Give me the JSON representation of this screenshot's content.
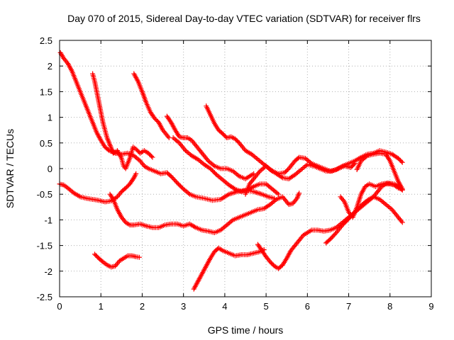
{
  "chart_data": {
    "type": "scatter",
    "title": "Day 070 of 2015, Sidereal Day-to-day VTEC variation (SDTVAR) for receiver flrs",
    "xlabel": "GPS time / hours",
    "ylabel": "SDTVAR / TECUs",
    "xlim": [
      0,
      9
    ],
    "ylim": [
      -2.5,
      2.5
    ],
    "xticks": [
      "0",
      "1",
      "2",
      "3",
      "4",
      "5",
      "6",
      "7",
      "8",
      "9"
    ],
    "yticks": [
      "2.5",
      "2",
      "1.5",
      "1",
      "0.5",
      "0",
      "-0.5",
      "-1",
      "-1.5",
      "-2",
      "-2.5"
    ],
    "grid": true,
    "marker": "+",
    "color": "#ff0000",
    "series": [
      {
        "points": [
          [
            0.02,
            2.26
          ],
          [
            0.1,
            2.15
          ],
          [
            0.2,
            2.05
          ],
          [
            0.3,
            1.9
          ],
          [
            0.4,
            1.7
          ],
          [
            0.5,
            1.5
          ],
          [
            0.6,
            1.3
          ],
          [
            0.7,
            1.1
          ],
          [
            0.8,
            0.9
          ],
          [
            0.9,
            0.7
          ],
          [
            1.0,
            0.55
          ],
          [
            1.1,
            0.42
          ],
          [
            1.2,
            0.35
          ],
          [
            1.35,
            0.3
          ],
          [
            1.5,
            0.28
          ],
          [
            1.65,
            0.3
          ],
          [
            1.8,
            0.25
          ],
          [
            1.95,
            0.15
          ],
          [
            2.05,
            0.05
          ],
          [
            2.15,
            0.0
          ],
          [
            2.3,
            -0.05
          ],
          [
            2.45,
            -0.1
          ],
          [
            2.6,
            -0.08
          ],
          [
            2.7,
            -0.15
          ],
          [
            2.85,
            -0.28
          ],
          [
            3.0,
            -0.4
          ],
          [
            3.15,
            -0.5
          ],
          [
            3.3,
            -0.55
          ],
          [
            3.5,
            -0.58
          ],
          [
            3.7,
            -0.62
          ],
          [
            3.9,
            -0.6
          ],
          [
            4.1,
            -0.5
          ],
          [
            4.3,
            -0.45
          ],
          [
            4.5,
            -0.42
          ],
          [
            4.7,
            -0.45
          ],
          [
            4.9,
            -0.5
          ],
          [
            5.05,
            -0.55
          ],
          [
            5.2,
            -0.58
          ]
        ]
      },
      {
        "points": [
          [
            0.0,
            -0.3
          ],
          [
            0.1,
            -0.32
          ],
          [
            0.2,
            -0.38
          ],
          [
            0.35,
            -0.48
          ],
          [
            0.5,
            -0.55
          ],
          [
            0.65,
            -0.58
          ],
          [
            0.8,
            -0.6
          ],
          [
            0.95,
            -0.62
          ],
          [
            1.1,
            -0.65
          ],
          [
            1.25,
            -0.63
          ],
          [
            1.4,
            -0.55
          ],
          [
            1.5,
            -0.45
          ],
          [
            1.6,
            -0.38
          ],
          [
            1.7,
            -0.3
          ],
          [
            1.8,
            -0.18
          ],
          [
            1.85,
            -0.1
          ]
        ]
      },
      {
        "points": [
          [
            0.8,
            1.85
          ],
          [
            0.85,
            1.7
          ],
          [
            0.9,
            1.5
          ],
          [
            0.95,
            1.3
          ],
          [
            1.0,
            1.1
          ],
          [
            1.05,
            0.9
          ],
          [
            1.1,
            0.75
          ],
          [
            1.15,
            0.6
          ],
          [
            1.2,
            0.5
          ],
          [
            1.25,
            0.4
          ],
          [
            1.3,
            0.32
          ],
          [
            1.35,
            0.3
          ]
        ]
      },
      {
        "points": [
          [
            1.3,
            0.3
          ],
          [
            1.4,
            0.35
          ],
          [
            1.5,
            0.2
          ],
          [
            1.55,
            0.05
          ],
          [
            1.6,
            0.0
          ],
          [
            1.7,
            0.2
          ],
          [
            1.78,
            0.42
          ],
          [
            1.85,
            0.38
          ],
          [
            1.95,
            0.3
          ],
          [
            2.05,
            0.35
          ],
          [
            2.15,
            0.3
          ],
          [
            2.25,
            0.22
          ]
        ]
      },
      {
        "points": [
          [
            1.22,
            -0.5
          ],
          [
            1.3,
            -0.6
          ],
          [
            1.4,
            -0.8
          ],
          [
            1.5,
            -0.95
          ],
          [
            1.6,
            -1.05
          ],
          [
            1.7,
            -1.1
          ],
          [
            1.8,
            -1.1
          ],
          [
            1.95,
            -1.08
          ],
          [
            2.1,
            -1.12
          ],
          [
            2.25,
            -1.15
          ],
          [
            2.4,
            -1.15
          ],
          [
            2.55,
            -1.1
          ],
          [
            2.7,
            -1.08
          ],
          [
            2.85,
            -1.08
          ],
          [
            3.0,
            -1.12
          ],
          [
            3.15,
            -1.08
          ],
          [
            3.3,
            -1.15
          ],
          [
            3.45,
            -1.2
          ],
          [
            3.6,
            -1.22
          ],
          [
            3.75,
            -1.25
          ],
          [
            3.9,
            -1.2
          ],
          [
            4.05,
            -1.1
          ],
          [
            4.2,
            -1.0
          ],
          [
            4.35,
            -0.95
          ],
          [
            4.5,
            -0.9
          ],
          [
            4.65,
            -0.85
          ],
          [
            4.8,
            -0.8
          ],
          [
            4.95,
            -0.78
          ],
          [
            5.1,
            -0.7
          ],
          [
            5.25,
            -0.6
          ],
          [
            5.4,
            -0.55
          ],
          [
            5.55,
            -0.7
          ],
          [
            5.65,
            -0.68
          ],
          [
            5.75,
            -0.58
          ],
          [
            5.8,
            -0.48
          ]
        ]
      },
      {
        "points": [
          [
            0.85,
            -1.67
          ],
          [
            0.95,
            -1.75
          ],
          [
            1.05,
            -1.82
          ],
          [
            1.15,
            -1.88
          ],
          [
            1.25,
            -1.92
          ],
          [
            1.35,
            -1.9
          ],
          [
            1.45,
            -1.8
          ],
          [
            1.55,
            -1.75
          ],
          [
            1.65,
            -1.7
          ],
          [
            1.75,
            -1.7
          ],
          [
            1.85,
            -1.72
          ],
          [
            1.93,
            -1.73
          ]
        ]
      },
      {
        "points": [
          [
            1.8,
            1.85
          ],
          [
            1.9,
            1.7
          ],
          [
            2.0,
            1.5
          ],
          [
            2.1,
            1.28
          ],
          [
            2.2,
            1.1
          ],
          [
            2.3,
            0.98
          ],
          [
            2.4,
            0.9
          ],
          [
            2.5,
            0.75
          ],
          [
            2.6,
            0.65
          ],
          [
            2.65,
            0.6
          ]
        ]
      },
      {
        "points": [
          [
            2.6,
            1.02
          ],
          [
            2.7,
            0.9
          ],
          [
            2.8,
            0.75
          ],
          [
            2.9,
            0.62
          ],
          [
            3.0,
            0.6
          ],
          [
            3.1,
            0.6
          ],
          [
            3.2,
            0.55
          ],
          [
            3.3,
            0.45
          ],
          [
            3.45,
            0.3
          ],
          [
            3.6,
            0.15
          ],
          [
            3.75,
            0.05
          ],
          [
            3.9,
            0.0
          ],
          [
            4.05,
            0.0
          ],
          [
            4.2,
            -0.05
          ],
          [
            4.35,
            -0.15
          ],
          [
            4.5,
            -0.2
          ],
          [
            4.6,
            -0.15
          ],
          [
            4.7,
            -0.1
          ]
        ]
      },
      {
        "points": [
          [
            2.75,
            0.6
          ],
          [
            2.9,
            0.5
          ],
          [
            3.05,
            0.35
          ],
          [
            3.2,
            0.25
          ],
          [
            3.35,
            0.18
          ],
          [
            3.5,
            0.08
          ],
          [
            3.65,
            0.0
          ],
          [
            3.8,
            -0.12
          ],
          [
            3.95,
            -0.22
          ],
          [
            4.1,
            -0.32
          ],
          [
            4.25,
            -0.4
          ],
          [
            4.4,
            -0.45
          ],
          [
            4.55,
            -0.42
          ],
          [
            4.7,
            -0.35
          ],
          [
            4.85,
            -0.3
          ],
          [
            5.0,
            -0.3
          ],
          [
            5.15,
            -0.4
          ],
          [
            5.3,
            -0.5
          ]
        ]
      },
      {
        "points": [
          [
            3.55,
            1.22
          ],
          [
            3.65,
            1.05
          ],
          [
            3.75,
            0.88
          ],
          [
            3.85,
            0.75
          ],
          [
            3.95,
            0.68
          ],
          [
            4.05,
            0.6
          ],
          [
            4.15,
            0.62
          ],
          [
            4.25,
            0.58
          ],
          [
            4.35,
            0.5
          ],
          [
            4.5,
            0.35
          ],
          [
            4.65,
            0.28
          ],
          [
            4.8,
            0.18
          ],
          [
            4.95,
            0.08
          ],
          [
            5.1,
            -0.02
          ],
          [
            5.25,
            -0.1
          ],
          [
            5.4,
            -0.18
          ],
          [
            5.55,
            -0.2
          ],
          [
            5.7,
            -0.12
          ],
          [
            5.85,
            -0.02
          ],
          [
            6.0,
            0.08
          ],
          [
            6.15,
            0.05
          ],
          [
            6.3,
            0.0
          ],
          [
            6.45,
            -0.05
          ],
          [
            6.6,
            -0.05
          ],
          [
            6.75,
            0.0
          ],
          [
            6.9,
            0.05
          ],
          [
            7.05,
            0.02
          ],
          [
            7.15,
            0.1
          ]
        ]
      },
      {
        "points": [
          [
            4.5,
            -0.5
          ],
          [
            4.6,
            -0.3
          ],
          [
            4.7,
            -0.2
          ],
          [
            4.85,
            -0.05
          ],
          [
            5.0,
            0.05
          ],
          [
            5.15,
            -0.05
          ],
          [
            5.3,
            -0.1
          ],
          [
            5.45,
            -0.08
          ],
          [
            5.55,
            0.0
          ],
          [
            5.7,
            0.15
          ],
          [
            5.8,
            0.22
          ],
          [
            5.95,
            0.2
          ],
          [
            6.1,
            0.1
          ],
          [
            6.25,
            0.05
          ],
          [
            6.4,
            0.0
          ],
          [
            6.55,
            -0.05
          ],
          [
            6.7,
            -0.02
          ],
          [
            6.85,
            0.05
          ],
          [
            7.0,
            0.1
          ],
          [
            7.15,
            0.15
          ],
          [
            7.3,
            0.22
          ],
          [
            7.45,
            0.28
          ],
          [
            7.6,
            0.3
          ],
          [
            7.75,
            0.35
          ],
          [
            7.9,
            0.32
          ],
          [
            8.05,
            0.28
          ],
          [
            8.2,
            0.2
          ],
          [
            8.3,
            0.12
          ]
        ]
      },
      {
        "points": [
          [
            3.25,
            -2.35
          ],
          [
            3.35,
            -2.2
          ],
          [
            3.45,
            -2.05
          ],
          [
            3.55,
            -1.9
          ],
          [
            3.65,
            -1.75
          ],
          [
            3.75,
            -1.62
          ],
          [
            3.85,
            -1.55
          ],
          [
            3.95,
            -1.6
          ],
          [
            4.1,
            -1.65
          ],
          [
            4.25,
            -1.7
          ],
          [
            4.4,
            -1.68
          ],
          [
            4.55,
            -1.68
          ],
          [
            4.7,
            -1.65
          ],
          [
            4.85,
            -1.62
          ],
          [
            4.95,
            -1.58
          ]
        ]
      },
      {
        "points": [
          [
            4.8,
            -1.48
          ],
          [
            4.9,
            -1.6
          ],
          [
            5.0,
            -1.72
          ],
          [
            5.1,
            -1.82
          ],
          [
            5.2,
            -1.9
          ],
          [
            5.3,
            -1.95
          ],
          [
            5.4,
            -1.88
          ],
          [
            5.5,
            -1.75
          ],
          [
            5.6,
            -1.6
          ],
          [
            5.7,
            -1.5
          ],
          [
            5.8,
            -1.4
          ],
          [
            5.9,
            -1.3
          ],
          [
            6.0,
            -1.25
          ],
          [
            6.1,
            -1.2
          ],
          [
            6.25,
            -1.2
          ],
          [
            6.4,
            -1.22
          ],
          [
            6.55,
            -1.2
          ],
          [
            6.7,
            -1.15
          ],
          [
            6.85,
            -1.05
          ],
          [
            7.0,
            -0.95
          ],
          [
            7.15,
            -0.85
          ],
          [
            7.3,
            -0.75
          ],
          [
            7.45,
            -0.65
          ],
          [
            7.6,
            -0.55
          ],
          [
            7.75,
            -0.6
          ],
          [
            7.9,
            -0.7
          ],
          [
            8.05,
            -0.8
          ],
          [
            8.2,
            -0.95
          ],
          [
            8.3,
            -1.05
          ]
        ]
      },
      {
        "points": [
          [
            6.45,
            -1.45
          ],
          [
            6.55,
            -1.38
          ],
          [
            6.7,
            -1.25
          ],
          [
            6.85,
            -1.1
          ],
          [
            7.0,
            -0.98
          ],
          [
            7.15,
            -0.85
          ],
          [
            7.3,
            -0.72
          ],
          [
            7.45,
            -0.62
          ],
          [
            7.6,
            -0.55
          ],
          [
            7.7,
            -0.45
          ],
          [
            7.8,
            -0.35
          ],
          [
            7.9,
            -0.3
          ],
          [
            8.0,
            -0.3
          ],
          [
            8.1,
            -0.32
          ],
          [
            8.2,
            -0.38
          ],
          [
            8.3,
            -0.4
          ]
        ]
      },
      {
        "points": [
          [
            6.8,
            -0.55
          ],
          [
            6.9,
            -0.65
          ],
          [
            7.0,
            -0.85
          ],
          [
            7.1,
            -0.95
          ],
          [
            7.2,
            -0.75
          ],
          [
            7.3,
            -0.5
          ],
          [
            7.4,
            -0.35
          ],
          [
            7.5,
            -0.3
          ],
          [
            7.65,
            -0.35
          ],
          [
            7.8,
            -0.3
          ],
          [
            7.95,
            -0.28
          ],
          [
            8.1,
            -0.3
          ],
          [
            8.2,
            -0.35
          ],
          [
            8.3,
            -0.42
          ]
        ]
      },
      {
        "points": [
          [
            7.2,
            -0.02
          ],
          [
            7.3,
            0.15
          ],
          [
            7.45,
            0.25
          ],
          [
            7.6,
            0.28
          ],
          [
            7.75,
            0.3
          ],
          [
            7.9,
            0.28
          ],
          [
            8.0,
            0.15
          ],
          [
            8.1,
            -0.05
          ],
          [
            8.2,
            -0.25
          ],
          [
            8.3,
            -0.4
          ]
        ]
      }
    ]
  }
}
